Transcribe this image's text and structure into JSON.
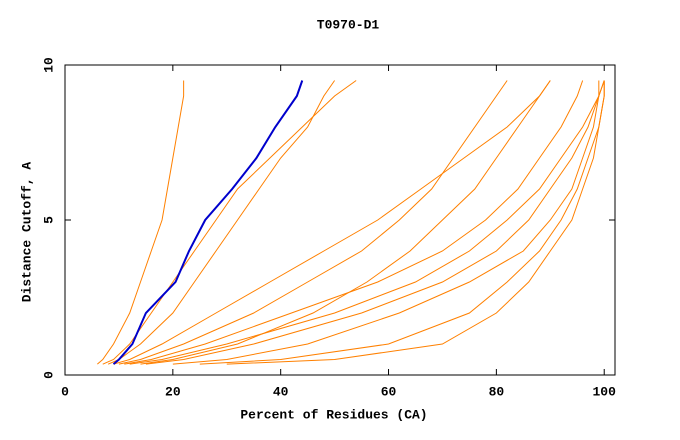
{
  "chart_data": {
    "type": "line",
    "orientation": "horizontal",
    "title": "T0970-D1",
    "x_label": "Percent of Residues (CA)",
    "y_label": "Distance Cutoff, A",
    "y": [
      0.35,
      0.5,
      1,
      2,
      3,
      4,
      5,
      6,
      7,
      8,
      9,
      9.5
    ],
    "series": [
      {
        "color": "#ff8000",
        "values": [
          6,
          7,
          9,
          12,
          14,
          16,
          18,
          19,
          20,
          21,
          22,
          22
        ]
      },
      {
        "color": "#ff8000",
        "values": [
          8,
          10,
          14,
          20,
          24,
          28,
          32,
          36,
          40,
          45,
          48,
          50
        ]
      },
      {
        "color": "#ff8000",
        "values": [
          10,
          14,
          22,
          35,
          45,
          55,
          62,
          68,
          72,
          76,
          80,
          82
        ]
      },
      {
        "color": "#ff8000",
        "values": [
          12,
          18,
          30,
          50,
          65,
          75,
          82,
          88,
          92,
          96,
          99,
          100
        ]
      },
      {
        "color": "#ff8000",
        "values": [
          20,
          30,
          45,
          62,
          75,
          85,
          90,
          94,
          96,
          98,
          99,
          100
        ]
      },
      {
        "color": "#ff8000",
        "values": [
          25,
          40,
          60,
          75,
          82,
          88,
          92,
          95,
          97,
          99,
          100,
          100
        ]
      },
      {
        "color": "#ff8000",
        "values": [
          15,
          22,
          35,
          55,
          70,
          80,
          86,
          90,
          94,
          97,
          99,
          99
        ]
      },
      {
        "color": "#ff8000",
        "values": [
          9,
          12,
          18,
          28,
          38,
          48,
          58,
          66,
          74,
          82,
          88,
          90
        ]
      },
      {
        "color": "#ff8000",
        "values": [
          7,
          9,
          12,
          16,
          20,
          24,
          28,
          32,
          38,
          44,
          50,
          54
        ]
      },
      {
        "color": "#ff8000",
        "values": [
          11,
          16,
          26,
          42,
          58,
          70,
          78,
          84,
          88,
          92,
          95,
          96
        ]
      },
      {
        "color": "#ff8000",
        "values": [
          30,
          50,
          70,
          80,
          86,
          90,
          94,
          96,
          98,
          99,
          100,
          100
        ]
      },
      {
        "color": "#ff8000",
        "values": [
          14,
          20,
          32,
          46,
          56,
          64,
          70,
          76,
          80,
          84,
          88,
          90
        ]
      },
      {
        "color": "#0000cc",
        "values": [
          9,
          10,
          12.5,
          15,
          20.5,
          23,
          26,
          31,
          35.5,
          39,
          43,
          44
        ]
      }
    ],
    "xlim": [
      0,
      102
    ],
    "ylim": [
      0,
      10
    ],
    "xticks": [
      0,
      20,
      40,
      60,
      80,
      100
    ],
    "yticks": [
      0,
      5,
      10
    ]
  }
}
